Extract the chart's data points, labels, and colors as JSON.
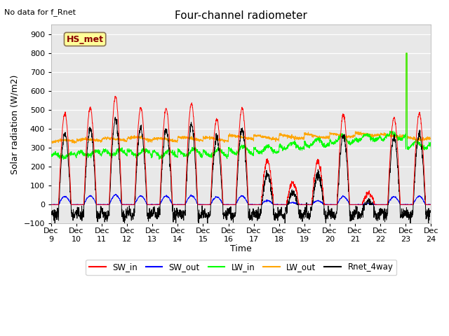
{
  "title": "Four-channel radiometer",
  "top_left_text": "No data for f_Rnet",
  "xlabel": "Time",
  "ylabel": "Solar radiation (W/m2)",
  "ylim": [
    -100,
    950
  ],
  "yticks": [
    -100,
    0,
    100,
    200,
    300,
    400,
    500,
    600,
    700,
    800,
    900
  ],
  "xlim": [
    0,
    15
  ],
  "xtick_positions": [
    0,
    1,
    2,
    3,
    4,
    5,
    6,
    7,
    8,
    9,
    10,
    11,
    12,
    13,
    14,
    15
  ],
  "xtick_labels": [
    "Dec 9",
    "Dec 10",
    "Dec 11",
    "Dec 12",
    "Dec 13",
    "Dec 14",
    "Dec 15",
    "Dec 16",
    "Dec 17",
    "Dec 18",
    "Dec 19",
    "Dec 20",
    "Dec 21",
    "Dec 22",
    "Dec 23",
    "Dec 24"
  ],
  "bg_color": "#e8e8e8",
  "plot_bg": "#dcdcdc",
  "legend_entries": [
    "SW_in",
    "SW_out",
    "LW_in",
    "LW_out",
    "Rnet_4way"
  ],
  "legend_colors": [
    "red",
    "blue",
    "lime",
    "orange",
    "black"
  ],
  "station_label": "HS_met",
  "station_label_color": "#8B0000",
  "station_box_facecolor": "#ffff99",
  "station_box_edgecolor": "#8B7355"
}
